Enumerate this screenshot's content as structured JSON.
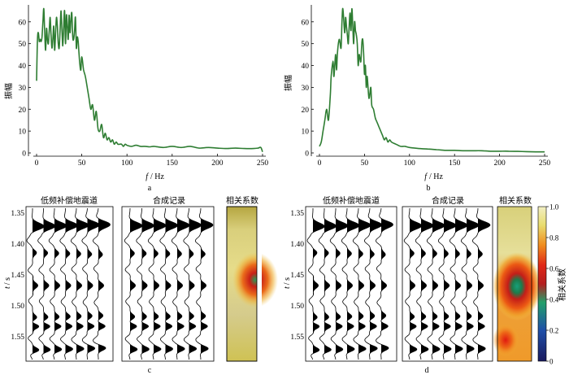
{
  "figure": {
    "panel_labels": [
      "a",
      "b",
      "c",
      "d"
    ]
  },
  "colors": {
    "spectrum_line": "#2e7d32",
    "wiggle_fill": "#000000"
  },
  "chart_data": [
    {
      "id": "a",
      "type": "line",
      "xlabel_var": "f",
      "xlabel_unit": "/ Hz",
      "ylabel": "振幅",
      "xlim": [
        0,
        250
      ],
      "ylim": [
        0,
        67
      ],
      "xticks": [
        0,
        50,
        100,
        150,
        200,
        250
      ],
      "yticks": [
        0,
        10,
        20,
        30,
        40,
        50,
        60
      ],
      "x": [
        0,
        1,
        2,
        3,
        4,
        5,
        6,
        7,
        8,
        9,
        10,
        11,
        12,
        13,
        14,
        15,
        16,
        17,
        18,
        19,
        20,
        21,
        22,
        23,
        24,
        25,
        26,
        27,
        28,
        29,
        30,
        31,
        32,
        33,
        34,
        35,
        36,
        37,
        38,
        39,
        40,
        41,
        42,
        43,
        44,
        45,
        46,
        47,
        48,
        49,
        50,
        52,
        54,
        56,
        58,
        60,
        62,
        64,
        66,
        68,
        70,
        72,
        74,
        76,
        78,
        80,
        82,
        84,
        86,
        88,
        90,
        92,
        94,
        96,
        98,
        100,
        105,
        110,
        115,
        120,
        125,
        130,
        140,
        150,
        160,
        170,
        180,
        190,
        200,
        210,
        220,
        230,
        240,
        245,
        248,
        250
      ],
      "y": [
        33,
        52,
        55,
        51,
        52,
        51,
        53,
        60,
        66,
        55,
        47,
        57,
        52,
        50,
        56,
        62,
        54,
        48,
        52,
        58,
        47,
        55,
        62,
        58,
        50,
        48,
        56,
        65,
        57,
        49,
        58,
        65,
        50,
        63,
        58,
        52,
        63,
        55,
        61,
        64,
        53,
        52,
        56,
        62,
        48,
        53,
        51,
        45,
        40,
        38,
        44,
        38,
        35,
        30,
        25,
        20,
        22,
        15,
        19,
        11,
        10,
        13,
        7,
        9,
        6,
        7,
        5,
        6,
        4,
        5,
        4,
        4,
        4,
        3,
        4,
        3.5,
        3,
        3.5,
        3,
        3,
        2.8,
        3,
        2.5,
        3,
        2.5,
        3,
        2.2,
        2.5,
        2.2,
        2,
        2.2,
        2,
        2,
        2.2,
        2.5,
        0.5
      ]
    },
    {
      "id": "b",
      "type": "line",
      "xlabel_var": "f",
      "xlabel_unit": "/ Hz",
      "ylabel": "振幅",
      "xlim": [
        0,
        250
      ],
      "ylim": [
        0,
        67
      ],
      "xticks": [
        0,
        50,
        100,
        150,
        200,
        250
      ],
      "yticks": [
        0,
        10,
        20,
        30,
        40,
        50,
        60
      ],
      "x": [
        0,
        2,
        4,
        6,
        8,
        10,
        12,
        13,
        15,
        16,
        17,
        18,
        19,
        20,
        22,
        24,
        25,
        26,
        28,
        29,
        30,
        31,
        32,
        33,
        34,
        35,
        36,
        37,
        38,
        39,
        40,
        41,
        42,
        43,
        44,
        45,
        46,
        47,
        48,
        49,
        50,
        51,
        52,
        53,
        55,
        57,
        58,
        60,
        62,
        64,
        66,
        68,
        70,
        72,
        74,
        76,
        78,
        80,
        85,
        90,
        95,
        100,
        110,
        120,
        130,
        140,
        150,
        160,
        170,
        180,
        190,
        200,
        210,
        220,
        230,
        240,
        250
      ],
      "y": [
        3,
        5,
        10,
        15,
        20,
        15,
        26,
        35,
        42,
        35,
        40,
        45,
        38,
        46,
        52,
        48,
        60,
        66,
        55,
        62,
        58,
        54,
        50,
        58,
        64,
        56,
        66,
        58,
        50,
        60,
        56,
        54,
        50,
        40,
        45,
        43,
        42,
        50,
        52,
        46,
        36,
        40,
        30,
        35,
        25,
        30,
        22,
        20,
        16,
        14,
        12,
        10,
        8,
        6,
        7,
        5,
        6,
        5,
        4,
        3,
        3,
        2.5,
        2,
        1.8,
        1.5,
        1.2,
        1.2,
        1,
        1,
        1,
        0.8,
        0.8,
        0.8,
        0.7,
        0.6,
        0.5,
        0.5
      ]
    },
    {
      "id": "c",
      "type": "wiggle",
      "ylabel_var": "t",
      "ylabel_unit": "/ s",
      "ylim": [
        1.34,
        1.59
      ],
      "yticks": [
        1.35,
        1.4,
        1.45,
        1.5,
        1.55
      ],
      "titles": {
        "left": "低频补偿地震道",
        "right": "合成记录",
        "heatmap": "相关系数"
      },
      "traces": 7
    },
    {
      "id": "d",
      "type": "wiggle",
      "ylabel_var": "t",
      "ylabel_unit": "/ s",
      "ylim": [
        1.34,
        1.59
      ],
      "yticks": [
        1.35,
        1.4,
        1.45,
        1.5,
        1.55
      ],
      "titles": {
        "left": "低频补偿地震道",
        "right": "合成记录",
        "heatmap": "相关系数"
      },
      "traces": 7,
      "colorbar": {
        "label": "相关系数",
        "range": [
          0,
          1
        ],
        "ticks": [
          0,
          0.2,
          0.4,
          0.6,
          0.8,
          1.0
        ]
      }
    }
  ]
}
